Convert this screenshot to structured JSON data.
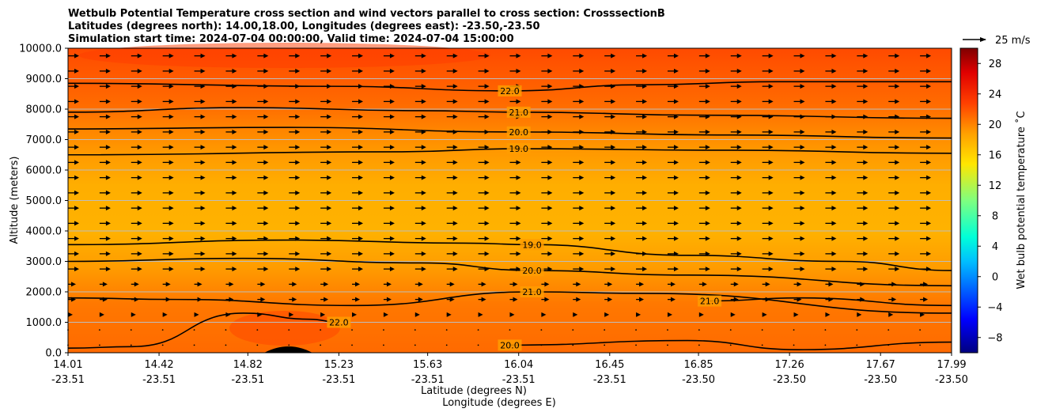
{
  "chart_data": {
    "type": "heatmap",
    "title_lines": [
      "Wetbulb Potential Temperature cross section and wind vectors parallel to cross section: CrosssectionB",
      "Latitudes (degrees north): 14.00,18.00, Longitudes (degrees east): -23.50,-23.50",
      "Simulation start time: 2024-07-04 00:00:00, Valid time: 2024-07-04 15:00:00"
    ],
    "ylabel": "Altitude (meters)",
    "xlabel_lat": "Latitude (degrees N)",
    "xlabel_lon": "Longitude (degrees E)",
    "ylim": [
      0,
      10000
    ],
    "y_ticks": [
      "0.0",
      "1000.0",
      "2000.0",
      "3000.0",
      "4000.0",
      "5000.0",
      "6000.0",
      "7000.0",
      "8000.0",
      "9000.0",
      "10000.0"
    ],
    "y_tick_values": [
      0,
      1000,
      2000,
      3000,
      4000,
      5000,
      6000,
      7000,
      8000,
      9000,
      10000
    ],
    "x_tick_lat": [
      "14.01",
      "14.42",
      "14.82",
      "15.23",
      "15.63",
      "16.04",
      "16.45",
      "16.85",
      "17.26",
      "17.67",
      "17.99"
    ],
    "x_tick_lon": [
      "-23.51",
      "-23.51",
      "-23.51",
      "-23.51",
      "-23.51",
      "-23.51",
      "-23.51",
      "-23.50",
      "-23.50",
      "-23.50",
      "-23.50"
    ],
    "x_tick_values": [
      14.01,
      14.42,
      14.82,
      15.23,
      15.63,
      16.04,
      16.45,
      16.85,
      17.26,
      17.67,
      17.99
    ],
    "xlim": [
      14.01,
      17.99
    ],
    "colorbar": {
      "label": "Wet bulb potential temperature ˚C",
      "ticks": [
        "−8",
        "−4",
        "0",
        "4",
        "8",
        "12",
        "16",
        "20",
        "24",
        "28"
      ],
      "tick_values": [
        -8,
        -4,
        0,
        4,
        8,
        12,
        16,
        20,
        24,
        28
      ],
      "range": [
        -10,
        30
      ]
    },
    "quiver_key": {
      "label": "25 m/s"
    },
    "contour_lines": [
      {
        "value": 22,
        "label": "22.0",
        "points": [
          [
            14.01,
            8850
          ],
          [
            15.2,
            8750
          ],
          [
            16.0,
            8600
          ],
          [
            16.6,
            8800
          ],
          [
            17.2,
            8900
          ],
          [
            17.99,
            8900
          ]
        ]
      },
      {
        "value": 21,
        "label": "21.0",
        "points": [
          [
            14.01,
            7900
          ],
          [
            14.8,
            8050
          ],
          [
            15.6,
            7950
          ],
          [
            16.04,
            7900
          ],
          [
            16.9,
            7800
          ],
          [
            17.99,
            7700
          ]
        ]
      },
      {
        "value": 20,
        "label": "20.0",
        "points": [
          [
            14.01,
            7350
          ],
          [
            15.0,
            7400
          ],
          [
            16.04,
            7250
          ],
          [
            17.0,
            7150
          ],
          [
            17.99,
            7050
          ]
        ]
      },
      {
        "value": 19,
        "label": "19.0",
        "points": [
          [
            14.01,
            6500
          ],
          [
            15.5,
            6600
          ],
          [
            16.04,
            6700
          ],
          [
            17.0,
            6650
          ],
          [
            17.99,
            6550
          ]
        ]
      },
      {
        "value": 19,
        "label": "19.0",
        "points": [
          [
            14.01,
            3550
          ],
          [
            15.0,
            3700
          ],
          [
            15.8,
            3600
          ],
          [
            16.1,
            3550
          ],
          [
            16.8,
            3200
          ],
          [
            17.5,
            3000
          ],
          [
            17.99,
            2700
          ]
        ]
      },
      {
        "value": 20,
        "label": "20.0",
        "points": [
          [
            14.01,
            3000
          ],
          [
            14.8,
            3100
          ],
          [
            15.6,
            2950
          ],
          [
            16.1,
            2700
          ],
          [
            16.8,
            2550
          ],
          [
            17.99,
            2200
          ]
        ]
      },
      {
        "value": 21,
        "label": "21.0",
        "points": [
          [
            14.01,
            1800
          ],
          [
            14.5,
            1750
          ],
          [
            15.3,
            1550
          ],
          [
            16.1,
            2000
          ],
          [
            16.6,
            1950
          ],
          [
            17.99,
            1300
          ]
        ]
      },
      {
        "value": 22,
        "label": "22.0",
        "points": [
          [
            14.01,
            150
          ],
          [
            14.3,
            200
          ],
          [
            14.8,
            1300
          ],
          [
            15.1,
            1100
          ],
          [
            15.23,
            1000
          ]
        ]
      },
      {
        "value": 21,
        "label": "21.0",
        "points": [
          [
            16.9,
            1700
          ],
          [
            17.3,
            1800
          ],
          [
            17.99,
            1550
          ]
        ]
      },
      {
        "value": 20,
        "label": "20.0",
        "points": [
          [
            16.0,
            250
          ],
          [
            16.8,
            400
          ],
          [
            17.3,
            100
          ],
          [
            17.99,
            350
          ]
        ]
      }
    ],
    "vectors_visible": "rightward arrows on a regular grid, weak near the surface"
  }
}
